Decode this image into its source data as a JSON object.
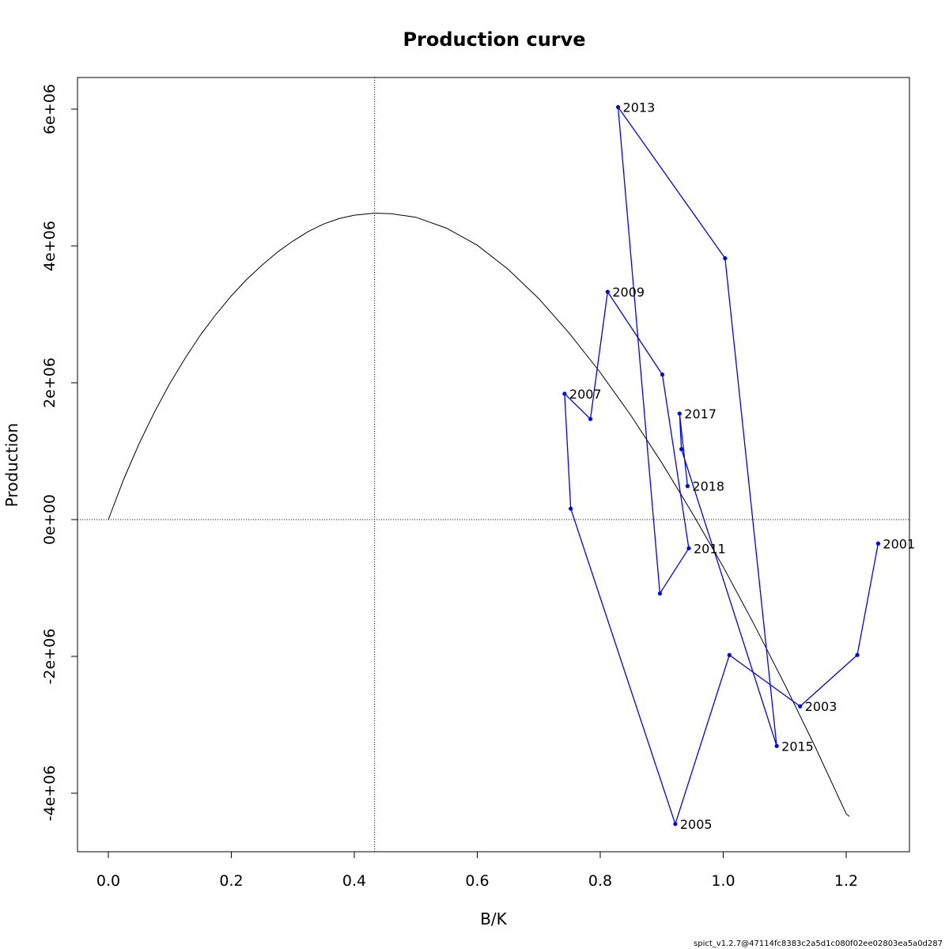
{
  "chart_data": {
    "type": "line",
    "title": "Production curve",
    "xlabel": "B/K",
    "ylabel": "Production",
    "xlim": [
      -0.05,
      1.3
    ],
    "ylim": [
      -4800000.0,
      6500000.0
    ],
    "x_ticks": [
      0.0,
      0.2,
      0.4,
      0.6,
      0.8,
      1.0,
      1.2
    ],
    "x_tick_labels": [
      "0.0",
      "0.2",
      "0.4",
      "0.6",
      "0.8",
      "1.0",
      "1.2"
    ],
    "y_ticks": [
      -4000000,
      -2000000,
      0,
      2000000,
      4000000,
      6000000
    ],
    "y_tick_labels": [
      "-4e+06",
      "-2e+06",
      "0e+00",
      "2e+06",
      "4e+06",
      "6e+06"
    ],
    "reference_lines": {
      "bmsy_over_k": 0.433,
      "zero_production": 0
    },
    "production_curve": {
      "color": "#000000",
      "points": [
        [
          0.0,
          0
        ],
        [
          0.025,
          590000
        ],
        [
          0.05,
          1110000
        ],
        [
          0.075,
          1570000
        ],
        [
          0.1,
          1990000
        ],
        [
          0.125,
          2360000
        ],
        [
          0.15,
          2700000
        ],
        [
          0.175,
          3000000
        ],
        [
          0.2,
          3270000
        ],
        [
          0.225,
          3510000
        ],
        [
          0.25,
          3720000
        ],
        [
          0.275,
          3910000
        ],
        [
          0.3,
          4070000
        ],
        [
          0.325,
          4210000
        ],
        [
          0.35,
          4320000
        ],
        [
          0.375,
          4400000
        ],
        [
          0.4,
          4450000
        ],
        [
          0.433,
          4480000
        ],
        [
          0.46,
          4470000
        ],
        [
          0.5,
          4420000
        ],
        [
          0.55,
          4260000
        ],
        [
          0.6,
          4010000
        ],
        [
          0.65,
          3660000
        ],
        [
          0.7,
          3230000
        ],
        [
          0.75,
          2720000
        ],
        [
          0.8,
          2150000
        ],
        [
          0.85,
          1520000
        ],
        [
          0.9,
          830000
        ],
        [
          0.95,
          90000
        ],
        [
          1.0,
          -690000
        ],
        [
          1.05,
          -1530000
        ],
        [
          1.1,
          -2410000
        ],
        [
          1.15,
          -3330000
        ],
        [
          1.2,
          -4300000
        ],
        [
          1.205,
          -4340000
        ]
      ]
    },
    "series": [
      {
        "color": "#0000ff",
        "points": [
          {
            "x": 1.252,
            "y": -350000,
            "label": "2001"
          },
          {
            "x": 1.218,
            "y": -1980000,
            "label": ""
          },
          {
            "x": 1.125,
            "y": -2730000,
            "label": "2003"
          },
          {
            "x": 1.01,
            "y": -1980000,
            "label": ""
          },
          {
            "x": 0.922,
            "y": -4450000,
            "label": "2005"
          },
          {
            "x": 0.752,
            "y": 160000,
            "label": ""
          },
          {
            "x": 0.742,
            "y": 1840000,
            "label": "2007"
          },
          {
            "x": 0.784,
            "y": 1470000,
            "label": ""
          },
          {
            "x": 0.812,
            "y": 3330000,
            "label": "2009"
          },
          {
            "x": 0.901,
            "y": 2120000,
            "label": ""
          },
          {
            "x": 0.944,
            "y": -420000,
            "label": "2011"
          },
          {
            "x": 0.897,
            "y": -1080000,
            "label": ""
          },
          {
            "x": 0.829,
            "y": 6030000,
            "label": "2013"
          },
          {
            "x": 1.003,
            "y": 3820000,
            "label": ""
          },
          {
            "x": 1.087,
            "y": -3310000,
            "label": "2015"
          },
          {
            "x": 0.932,
            "y": 1030000,
            "label": ""
          },
          {
            "x": 0.929,
            "y": 1550000,
            "label": "2017"
          },
          {
            "x": 0.942,
            "y": 490000,
            "label": "2018"
          }
        ]
      }
    ]
  },
  "footer_text": "spict_v1.2.7@47114fc8383c2a5d1c080f02ee02803ea5a0d287"
}
